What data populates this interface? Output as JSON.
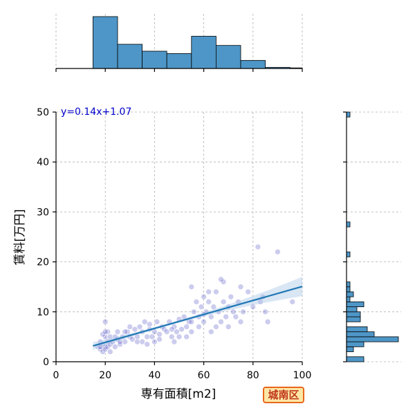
{
  "chart_data": {
    "type": "scatter",
    "xlabel": "専有面積[m2]",
    "ylabel": "賃料[万円]",
    "xlim": [
      0,
      100
    ],
    "ylim": [
      0,
      50
    ],
    "x_ticks": [
      0,
      20,
      40,
      60,
      80,
      100
    ],
    "y_ticks": [
      0,
      10,
      20,
      30,
      40,
      50
    ],
    "grid": true,
    "equation_label": "y=0.14x+1.07",
    "regression": {
      "slope": 0.14,
      "intercept": 1.07,
      "x_range": [
        15,
        100
      ]
    },
    "colors": {
      "points": "#3333bb",
      "line": "#1f77b4",
      "bars": "#4e96c7",
      "equation": "#0000cc",
      "band": "#aac8e6"
    },
    "x_histogram": {
      "bins": [
        15,
        25,
        35,
        45,
        55,
        65,
        75,
        85,
        95,
        100
      ],
      "counts": [
        45,
        21,
        15,
        13,
        28,
        20,
        7,
        1,
        0.5
      ]
    },
    "y_histogram": {
      "bin_width": 1,
      "bins_start": 0,
      "counts": [
        5,
        0,
        2,
        5,
        15,
        8,
        6,
        0,
        4,
        4,
        3,
        5,
        1,
        2,
        1,
        1,
        0,
        0,
        0,
        0,
        0,
        1,
        0,
        0,
        0,
        0,
        0,
        1,
        0,
        0,
        0,
        0,
        0,
        0,
        0,
        0,
        0,
        0,
        0,
        0,
        0,
        0,
        0,
        0,
        0,
        0,
        0,
        0,
        0,
        1
      ]
    },
    "points": [
      [
        17,
        3
      ],
      [
        18,
        2.5
      ],
      [
        18,
        4
      ],
      [
        19,
        2
      ],
      [
        19,
        3.5
      ],
      [
        20,
        5
      ],
      [
        20,
        3
      ],
      [
        20,
        2.5
      ],
      [
        21,
        4
      ],
      [
        21,
        6
      ],
      [
        19,
        5.5
      ],
      [
        20,
        8
      ],
      [
        20,
        6
      ],
      [
        21,
        3
      ],
      [
        22,
        3.5
      ],
      [
        22,
        5
      ],
      [
        23,
        4
      ],
      [
        24,
        3
      ],
      [
        25,
        6
      ],
      [
        25,
        4.5
      ],
      [
        26,
        3.5
      ],
      [
        27,
        5
      ],
      [
        28,
        4
      ],
      [
        29,
        6
      ],
      [
        30,
        5
      ],
      [
        30,
        7
      ],
      [
        31,
        4.5
      ],
      [
        32,
        6.5
      ],
      [
        33,
        5
      ],
      [
        34,
        7
      ],
      [
        35,
        6
      ],
      [
        35,
        4
      ],
      [
        36,
        8
      ],
      [
        37,
        5
      ],
      [
        38,
        6.5
      ],
      [
        38,
        7.5
      ],
      [
        39,
        5
      ],
      [
        40,
        4
      ],
      [
        40,
        6
      ],
      [
        41,
        8
      ],
      [
        42,
        5.5
      ],
      [
        43,
        7
      ],
      [
        44,
        6.5
      ],
      [
        45,
        6
      ],
      [
        46,
        8
      ],
      [
        47,
        5
      ],
      [
        48,
        7
      ],
      [
        49,
        6
      ],
      [
        50,
        8.5
      ],
      [
        50,
        5
      ],
      [
        51,
        6.5
      ],
      [
        52,
        9
      ],
      [
        53,
        7
      ],
      [
        54,
        8
      ],
      [
        55,
        6
      ],
      [
        55,
        15
      ],
      [
        56,
        10
      ],
      [
        57,
        12
      ],
      [
        58,
        9
      ],
      [
        59,
        11
      ],
      [
        60,
        13
      ],
      [
        60,
        8
      ],
      [
        61,
        10
      ],
      [
        62,
        12
      ],
      [
        63,
        9
      ],
      [
        64,
        11
      ],
      [
        65,
        7
      ],
      [
        65,
        14
      ],
      [
        66,
        10
      ],
      [
        67,
        8
      ],
      [
        68,
        16
      ],
      [
        68,
        12
      ],
      [
        69,
        9
      ],
      [
        70,
        11
      ],
      [
        71,
        13
      ],
      [
        72,
        10
      ],
      [
        73,
        9
      ],
      [
        74,
        12
      ],
      [
        75,
        15
      ],
      [
        76,
        10
      ],
      [
        78,
        14
      ],
      [
        80,
        11
      ],
      [
        82,
        23
      ],
      [
        84,
        13
      ],
      [
        85,
        10
      ],
      [
        90,
        22
      ],
      [
        96,
        12
      ],
      [
        18,
        3
      ],
      [
        22,
        2
      ],
      [
        24,
        5
      ],
      [
        26,
        4
      ],
      [
        28,
        6
      ],
      [
        33,
        4
      ],
      [
        37,
        3.5
      ],
      [
        42,
        4.5
      ],
      [
        47,
        6.5
      ],
      [
        53,
        5
      ],
      [
        58,
        7
      ],
      [
        63,
        6
      ],
      [
        67,
        16.5
      ],
      [
        70,
        7
      ],
      [
        75,
        8
      ],
      [
        83,
        12
      ],
      [
        86,
        8
      ],
      [
        60,
        9.5
      ],
      [
        62,
        14
      ],
      [
        55,
        8
      ],
      [
        48,
        4
      ]
    ]
  },
  "badge": {
    "label": "城南区"
  }
}
